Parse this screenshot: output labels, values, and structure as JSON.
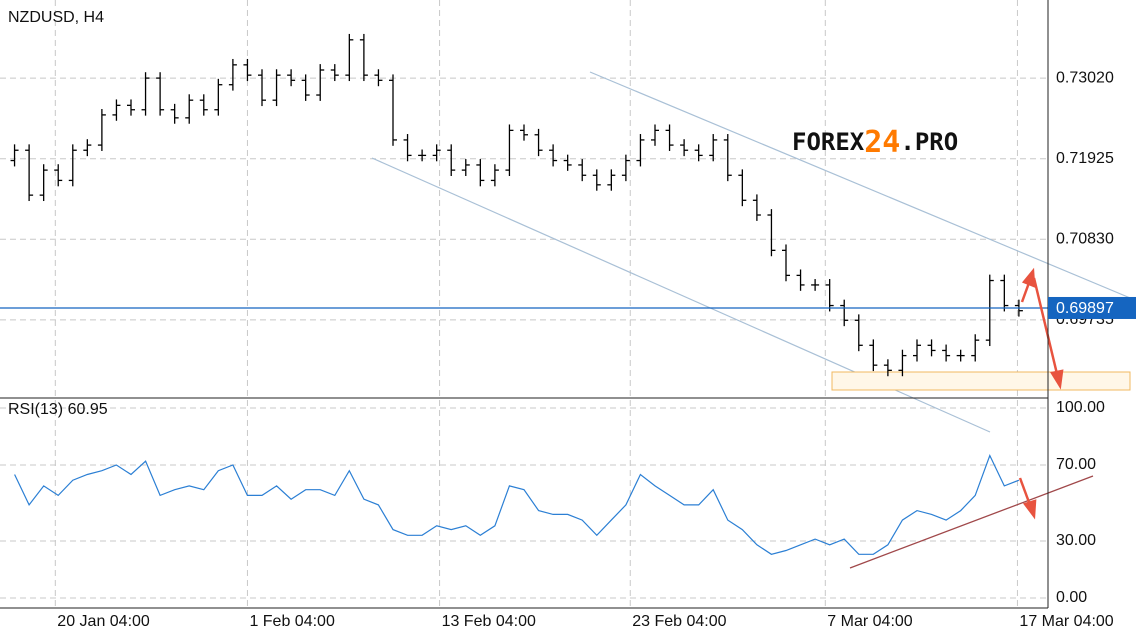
{
  "chart_data": [
    {
      "type": "ohlc",
      "title": "NZDUSD, H4",
      "color": "#000000",
      "grid": true,
      "watermark": [
        "FOREX",
        "24",
        ".PRO"
      ],
      "x": [
        1,
        2,
        3,
        4,
        5,
        6,
        7,
        8,
        9,
        10,
        11,
        12,
        13,
        14,
        15,
        16,
        17,
        18,
        19,
        20,
        21,
        22,
        23,
        24,
        25,
        26,
        27,
        28,
        29,
        30,
        31,
        32,
        33,
        34,
        35,
        36,
        37,
        38,
        39,
        40,
        41,
        42,
        43,
        44,
        45,
        46,
        47,
        48,
        49,
        50,
        51,
        52,
        53,
        54,
        55,
        56,
        57,
        58,
        59,
        60,
        61,
        62,
        63,
        64,
        65,
        66,
        67,
        68,
        69,
        70
      ],
      "open": [
        0.719,
        0.7204,
        0.7143,
        0.7177,
        0.7163,
        0.7204,
        0.7211,
        0.7252,
        0.7265,
        0.7259,
        0.7302,
        0.7259,
        0.7248,
        0.7272,
        0.7259,
        0.7293,
        0.732,
        0.7306,
        0.7272,
        0.7306,
        0.7299,
        0.7279,
        0.7313,
        0.7306,
        0.7354,
        0.7306,
        0.7299,
        0.7218,
        0.7197,
        0.7197,
        0.7204,
        0.7177,
        0.7184,
        0.7163,
        0.7177,
        0.7231,
        0.7225,
        0.7204,
        0.719,
        0.7184,
        0.717,
        0.7157,
        0.717,
        0.719,
        0.7218,
        0.7231,
        0.7211,
        0.7204,
        0.7197,
        0.7218,
        0.717,
        0.7136,
        0.7116,
        0.7068,
        0.7034,
        0.7021,
        0.7021,
        0.6993,
        0.6973,
        0.6939,
        0.6912,
        0.6905,
        0.6925,
        0.6939,
        0.6932,
        0.6925,
        0.6925,
        0.6946,
        0.7027,
        0.6993
      ],
      "high": [
        0.7212,
        0.7212,
        0.7185,
        0.7185,
        0.7212,
        0.7219,
        0.726,
        0.7273,
        0.7273,
        0.731,
        0.731,
        0.7267,
        0.728,
        0.728,
        0.7301,
        0.7328,
        0.7328,
        0.7314,
        0.7314,
        0.7314,
        0.7307,
        0.7321,
        0.7321,
        0.7362,
        0.7362,
        0.7314,
        0.7307,
        0.7226,
        0.7205,
        0.7212,
        0.7212,
        0.7192,
        0.7192,
        0.7185,
        0.7239,
        0.7239,
        0.7233,
        0.7212,
        0.7198,
        0.7192,
        0.7178,
        0.7178,
        0.7198,
        0.7226,
        0.7239,
        0.7239,
        0.7219,
        0.7212,
        0.7226,
        0.7226,
        0.7178,
        0.7144,
        0.7124,
        0.7076,
        0.7042,
        0.7029,
        0.7029,
        0.7001,
        0.6981,
        0.6947,
        0.692,
        0.6933,
        0.6947,
        0.6947,
        0.694,
        0.6933,
        0.6954,
        0.7035,
        0.7035,
        0.7001
      ],
      "low": [
        0.7182,
        0.7135,
        0.7135,
        0.7155,
        0.7155,
        0.7196,
        0.7203,
        0.7244,
        0.7251,
        0.7251,
        0.7251,
        0.724,
        0.724,
        0.7251,
        0.7251,
        0.7285,
        0.7298,
        0.7264,
        0.7264,
        0.7291,
        0.7271,
        0.7271,
        0.7298,
        0.7298,
        0.7298,
        0.7291,
        0.721,
        0.7189,
        0.7189,
        0.7189,
        0.7169,
        0.7169,
        0.7155,
        0.7155,
        0.7169,
        0.7217,
        0.7196,
        0.7182,
        0.7176,
        0.7162,
        0.7149,
        0.7149,
        0.7162,
        0.7182,
        0.721,
        0.7203,
        0.7196,
        0.7189,
        0.7189,
        0.7162,
        0.7128,
        0.7108,
        0.706,
        0.7026,
        0.7013,
        0.7013,
        0.6985,
        0.6965,
        0.6931,
        0.6904,
        0.6897,
        0.6897,
        0.6917,
        0.6924,
        0.6917,
        0.6917,
        0.6917,
        0.6938,
        0.6985,
        0.6978
      ],
      "close": [
        0.7204,
        0.7143,
        0.7177,
        0.7163,
        0.7204,
        0.7211,
        0.7252,
        0.7265,
        0.7259,
        0.7302,
        0.7259,
        0.7248,
        0.7272,
        0.7259,
        0.7293,
        0.732,
        0.7306,
        0.7272,
        0.7306,
        0.7299,
        0.7279,
        0.7313,
        0.7306,
        0.7354,
        0.7306,
        0.7299,
        0.7218,
        0.7197,
        0.7197,
        0.7204,
        0.7177,
        0.7184,
        0.7163,
        0.7177,
        0.7231,
        0.7225,
        0.7204,
        0.719,
        0.7184,
        0.717,
        0.7157,
        0.717,
        0.719,
        0.7218,
        0.7231,
        0.7211,
        0.7204,
        0.7197,
        0.7218,
        0.717,
        0.7136,
        0.7116,
        0.7068,
        0.7034,
        0.7021,
        0.7021,
        0.6993,
        0.6973,
        0.6939,
        0.6912,
        0.6905,
        0.6925,
        0.6939,
        0.6932,
        0.6925,
        0.6925,
        0.6946,
        0.7027,
        0.6993,
        0.6986
      ],
      "last_price": 0.69897,
      "last_price_color": "#1565c0",
      "xlim": [
        0,
        72
      ],
      "ylim": [
        0.68674,
        0.74081
      ],
      "yticks": [
        {
          "value": 0.7302,
          "label": "0.73020"
        },
        {
          "value": 0.71925,
          "label": "0.71925"
        },
        {
          "value": 0.7083,
          "label": "0.70830"
        },
        {
          "value": 0.69735,
          "label": "0.69735"
        }
      ],
      "xticks": [
        {
          "value": 3.8,
          "label": "20 Jan 04:00"
        },
        {
          "value": 17,
          "label": "1 Feb 04:00"
        },
        {
          "value": 30.2,
          "label": "13 Feb 04:00"
        },
        {
          "value": 43.3,
          "label": "23 Feb 04:00"
        },
        {
          "value": 56.7,
          "label": "7 Mar 04:00"
        },
        {
          "value": 69.9,
          "label": "17 Mar 04:00"
        }
      ]
    },
    {
      "type": "line",
      "title": "RSI(13) 60.95",
      "color": "#2b7fd4",
      "grid": true,
      "x": [
        1,
        2,
        3,
        4,
        5,
        6,
        7,
        8,
        9,
        10,
        11,
        12,
        13,
        14,
        15,
        16,
        17,
        18,
        19,
        20,
        21,
        22,
        23,
        24,
        25,
        26,
        27,
        28,
        29,
        30,
        31,
        32,
        33,
        34,
        35,
        36,
        37,
        38,
        39,
        40,
        41,
        42,
        43,
        44,
        45,
        46,
        47,
        48,
        49,
        50,
        51,
        52,
        53,
        54,
        55,
        56,
        57,
        58,
        59,
        60,
        61,
        62,
        63,
        64,
        65,
        66,
        67,
        68,
        69,
        70
      ],
      "values": [
        65,
        49,
        59,
        54,
        62,
        65,
        67,
        70,
        65,
        72,
        54,
        57,
        59,
        57,
        67,
        70,
        54,
        54,
        59,
        52,
        57,
        57,
        54,
        67,
        52,
        49,
        36,
        33,
        33,
        38,
        36,
        38,
        33,
        38,
        59,
        57,
        46,
        44,
        44,
        41,
        33,
        41,
        49,
        65,
        59,
        54,
        49,
        49,
        57,
        41,
        36,
        28,
        23,
        25,
        28,
        31,
        28,
        31,
        23,
        23,
        28,
        41,
        46,
        44,
        41,
        46,
        54,
        75,
        59,
        62
      ],
      "xlim": [
        0,
        72
      ],
      "ylim": [
        0,
        100
      ],
      "yticks": [
        {
          "value": 100,
          "label": "100.00"
        },
        {
          "value": 70,
          "label": "70.00"
        },
        {
          "value": 30,
          "label": "30.00"
        },
        {
          "value": 0,
          "label": "0.00"
        }
      ]
    }
  ]
}
